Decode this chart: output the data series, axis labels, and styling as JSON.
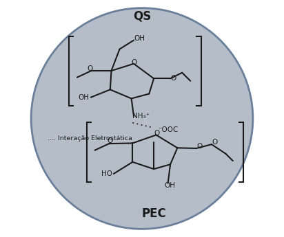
{
  "fig_width": 4.12,
  "fig_height": 3.45,
  "dpi": 100,
  "bg_color": "#ffffff",
  "ellipse_color": "#b5bec8",
  "ellipse_edge_color": "#6a7f99",
  "label_QS": "QS",
  "label_PEC": "PEC",
  "label_interaction": ".... Interação Eletrostática",
  "line_color": "#1a1a1a",
  "text_color": "#1a1a1a"
}
